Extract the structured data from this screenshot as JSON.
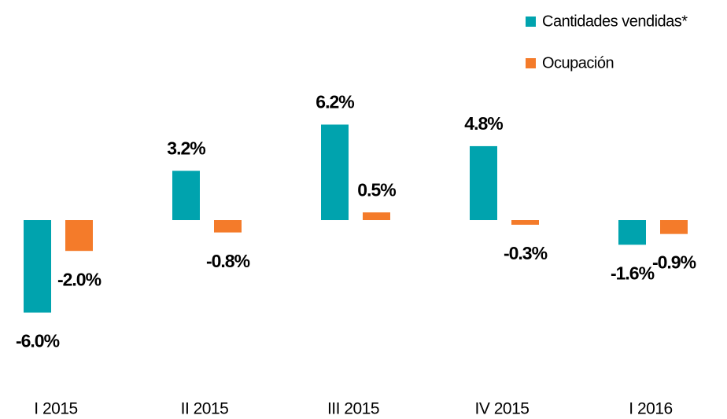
{
  "chart_data": {
    "type": "bar",
    "categories": [
      "I 2015",
      "II 2015",
      "III 2015",
      "IV 2015",
      "I 2016"
    ],
    "series": [
      {
        "name": "Cantidades vendidas*",
        "color": "#00a3ae",
        "values": [
          -6.0,
          3.2,
          6.2,
          4.8,
          -1.6
        ],
        "value_labels": [
          "-6.0%",
          "3.2%",
          "6.2%",
          "4.8%",
          "-1.6%"
        ]
      },
      {
        "name": "Ocupación",
        "color": "#f47b2a",
        "values": [
          -2.0,
          -0.8,
          0.5,
          -0.3,
          -0.9
        ],
        "value_labels": [
          "-2.0%",
          "-0.8%",
          "0.5%",
          "-0.3%",
          "-0.9%"
        ]
      }
    ],
    "legend": "top-right"
  }
}
